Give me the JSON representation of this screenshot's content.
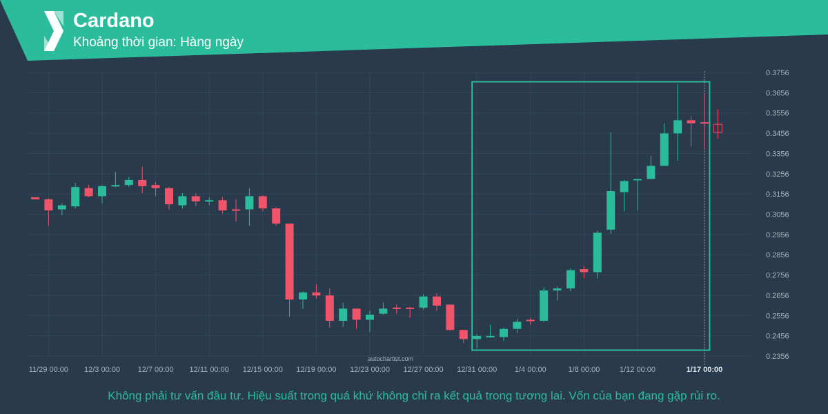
{
  "header": {
    "title": "Cardano",
    "subtitle": "Khoảng thời gian: Hàng ngày"
  },
  "watermark": "autochartist.com",
  "disclaimer": "Không phải tư vấn đầu tư. Hiệu suất trong quá khứ không chỉ ra kết quả trong tương lai. Vốn của bạn đang gặp rủi ro.",
  "colors": {
    "background": "#283a4b",
    "banner": "#2bbd9b",
    "up": "#2bbd9b",
    "down": "#f0546a",
    "grid": "#33475a",
    "axis_text": "#a9b4bf",
    "pattern_box": "#2bbd9b"
  },
  "chart_data": {
    "type": "candlestick",
    "y_ticks": [
      "0.3756",
      "0.3656",
      "0.3556",
      "0.3456",
      "0.3356",
      "0.3256",
      "0.3156",
      "0.3056",
      "0.2956",
      "0.2856",
      "0.2756",
      "0.2656",
      "0.2556",
      "0.2456",
      "0.2356"
    ],
    "ylim": [
      0.2356,
      0.3756
    ],
    "x_ticks": [
      {
        "label": "11/29 00:00",
        "index": 1
      },
      {
        "label": "12/3 00:00",
        "index": 5
      },
      {
        "label": "12/7 00:00",
        "index": 9
      },
      {
        "label": "12/11 00:00",
        "index": 13
      },
      {
        "label": "12/15 00:00",
        "index": 17
      },
      {
        "label": "12/19 00:00",
        "index": 21
      },
      {
        "label": "12/23 00:00",
        "index": 25
      },
      {
        "label": "12/27 00:00",
        "index": 29
      },
      {
        "label": "12/31 00:00",
        "index": 33
      },
      {
        "label": "1/4 00:00",
        "index": 37
      },
      {
        "label": "1/8 00:00",
        "index": 41
      },
      {
        "label": "1/12 00:00",
        "index": 45
      },
      {
        "label": "1/17 00:00",
        "index": 50
      }
    ],
    "current_time_label": "1/17 00:00",
    "candles": [
      {
        "o": 0.314,
        "h": 0.314,
        "l": 0.313,
        "c": 0.313
      },
      {
        "o": 0.313,
        "h": 0.3135,
        "l": 0.3,
        "c": 0.3075
      },
      {
        "o": 0.308,
        "h": 0.311,
        "l": 0.305,
        "c": 0.31
      },
      {
        "o": 0.3095,
        "h": 0.321,
        "l": 0.3085,
        "c": 0.319
      },
      {
        "o": 0.3185,
        "h": 0.32,
        "l": 0.314,
        "c": 0.3145
      },
      {
        "o": 0.3145,
        "h": 0.32,
        "l": 0.311,
        "c": 0.3195
      },
      {
        "o": 0.3195,
        "h": 0.3265,
        "l": 0.319,
        "c": 0.32
      },
      {
        "o": 0.32,
        "h": 0.324,
        "l": 0.319,
        "c": 0.3225
      },
      {
        "o": 0.3225,
        "h": 0.329,
        "l": 0.316,
        "c": 0.3195
      },
      {
        "o": 0.32,
        "h": 0.3215,
        "l": 0.3145,
        "c": 0.3185
      },
      {
        "o": 0.3185,
        "h": 0.319,
        "l": 0.308,
        "c": 0.3105
      },
      {
        "o": 0.31,
        "h": 0.316,
        "l": 0.3085,
        "c": 0.3145
      },
      {
        "o": 0.3145,
        "h": 0.316,
        "l": 0.3095,
        "c": 0.312
      },
      {
        "o": 0.312,
        "h": 0.314,
        "l": 0.31,
        "c": 0.3125
      },
      {
        "o": 0.3125,
        "h": 0.314,
        "l": 0.306,
        "c": 0.3075
      },
      {
        "o": 0.308,
        "h": 0.313,
        "l": 0.302,
        "c": 0.3075
      },
      {
        "o": 0.308,
        "h": 0.3185,
        "l": 0.3,
        "c": 0.3145
      },
      {
        "o": 0.3145,
        "h": 0.315,
        "l": 0.307,
        "c": 0.3085
      },
      {
        "o": 0.3085,
        "h": 0.309,
        "l": 0.3,
        "c": 0.301
      },
      {
        "o": 0.301,
        "h": 0.301,
        "l": 0.255,
        "c": 0.2635
      },
      {
        "o": 0.2635,
        "h": 0.2675,
        "l": 0.259,
        "c": 0.267
      },
      {
        "o": 0.267,
        "h": 0.271,
        "l": 0.264,
        "c": 0.2655
      },
      {
        "o": 0.2655,
        "h": 0.269,
        "l": 0.2495,
        "c": 0.253
      },
      {
        "o": 0.253,
        "h": 0.262,
        "l": 0.25,
        "c": 0.259
      },
      {
        "o": 0.259,
        "h": 0.259,
        "l": 0.249,
        "c": 0.2535
      },
      {
        "o": 0.2535,
        "h": 0.258,
        "l": 0.2475,
        "c": 0.256
      },
      {
        "o": 0.2565,
        "h": 0.262,
        "l": 0.256,
        "c": 0.259
      },
      {
        "o": 0.2595,
        "h": 0.261,
        "l": 0.2565,
        "c": 0.259
      },
      {
        "o": 0.2595,
        "h": 0.26,
        "l": 0.2545,
        "c": 0.259
      },
      {
        "o": 0.2595,
        "h": 0.266,
        "l": 0.2585,
        "c": 0.265
      },
      {
        "o": 0.265,
        "h": 0.2665,
        "l": 0.258,
        "c": 0.2605
      },
      {
        "o": 0.261,
        "h": 0.261,
        "l": 0.248,
        "c": 0.2485
      },
      {
        "o": 0.2485,
        "h": 0.2485,
        "l": 0.242,
        "c": 0.244
      },
      {
        "o": 0.244,
        "h": 0.2465,
        "l": 0.2395,
        "c": 0.2455
      },
      {
        "o": 0.2455,
        "h": 0.251,
        "l": 0.2445,
        "c": 0.2455
      },
      {
        "o": 0.245,
        "h": 0.2495,
        "l": 0.243,
        "c": 0.249
      },
      {
        "o": 0.249,
        "h": 0.254,
        "l": 0.247,
        "c": 0.2525
      },
      {
        "o": 0.2535,
        "h": 0.2545,
        "l": 0.251,
        "c": 0.253
      },
      {
        "o": 0.253,
        "h": 0.2695,
        "l": 0.2525,
        "c": 0.268
      },
      {
        "o": 0.268,
        "h": 0.27,
        "l": 0.263,
        "c": 0.269
      },
      {
        "o": 0.269,
        "h": 0.279,
        "l": 0.2675,
        "c": 0.278
      },
      {
        "o": 0.2785,
        "h": 0.28,
        "l": 0.274,
        "c": 0.277
      },
      {
        "o": 0.277,
        "h": 0.2975,
        "l": 0.274,
        "c": 0.2965
      },
      {
        "o": 0.298,
        "h": 0.346,
        "l": 0.296,
        "c": 0.317
      },
      {
        "o": 0.3165,
        "h": 0.3225,
        "l": 0.307,
        "c": 0.322
      },
      {
        "o": 0.3225,
        "h": 0.3225,
        "l": 0.3075,
        "c": 0.323
      },
      {
        "o": 0.323,
        "h": 0.3345,
        "l": 0.3235,
        "c": 0.3295
      },
      {
        "o": 0.3295,
        "h": 0.3505,
        "l": 0.3295,
        "c": 0.3455
      },
      {
        "o": 0.3455,
        "h": 0.37,
        "l": 0.332,
        "c": 0.352
      },
      {
        "o": 0.352,
        "h": 0.354,
        "l": 0.339,
        "c": 0.3505
      },
      {
        "o": 0.351,
        "h": 0.365,
        "l": 0.3375,
        "c": 0.3505
      },
      {
        "o": 0.35,
        "h": 0.3575,
        "l": 0.343,
        "c": 0.346
      }
    ],
    "pattern_box": {
      "start_index": 33,
      "end_index": 51,
      "high": 0.371,
      "low": 0.2385
    }
  }
}
